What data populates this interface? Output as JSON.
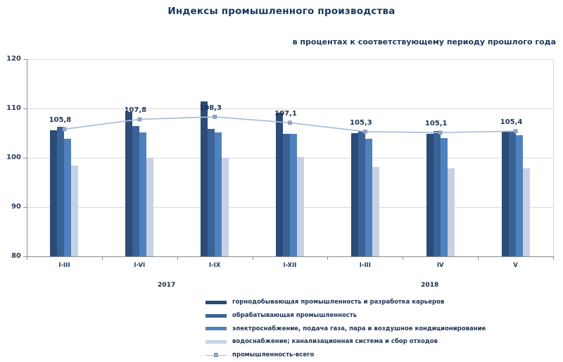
{
  "header": {
    "title": "Индексы промышленного производства",
    "subtitle": "в процентах к соответствующему периоду прошлого года"
  },
  "chart_data": {
    "type": "bar",
    "title": "Индексы промышленного производства",
    "subtitle": "в процентах к соответствующему периоду прошлого года",
    "categories": [
      "I-III",
      "I-VI",
      "I-IX",
      "I-XII",
      "I-III",
      "IV",
      "V"
    ],
    "year_groups": [
      {
        "label": "2017",
        "span": 4
      },
      {
        "label": "2018",
        "span": 3
      }
    ],
    "series": [
      {
        "name": "горнодобывающая промышленность  и разработка карьеров",
        "type": "bar",
        "color": "#2c4c77",
        "values": [
          105.6,
          109.3,
          111.4,
          109.1,
          105.0,
          104.9,
          105.3
        ]
      },
      {
        "name": "обрабатывающая промышленность",
        "type": "bar",
        "color": "#396297",
        "values": [
          106.3,
          106.4,
          105.8,
          104.9,
          105.5,
          105.4,
          105.5
        ]
      },
      {
        "name": "электроснабжение,  подача газа, пара и воздушное кондиционирование",
        "type": "bar",
        "color": "#4f81bd",
        "values": [
          103.9,
          105.2,
          105.1,
          104.8,
          103.9,
          104.0,
          104.6
        ]
      },
      {
        "name": "водоснабжение;  канализационная  система  и сбор  отходов",
        "type": "bar",
        "color": "#c7d1e6",
        "values": [
          98.4,
          100.0,
          100.0,
          100.1,
          98.1,
          97.9,
          97.9
        ]
      },
      {
        "name": "промышленность-всего",
        "type": "line",
        "color": "#a8bbd9",
        "marker_color": "#90a7c6",
        "values": [
          105.8,
          107.8,
          108.3,
          107.1,
          105.3,
          105.1,
          105.4
        ],
        "labels": [
          "105,8",
          "107,8",
          "108,3",
          "107,1",
          "105,3",
          "105,1",
          "105,4"
        ]
      }
    ],
    "ylim": [
      80,
      120
    ],
    "yticks": [
      80,
      90,
      100,
      110,
      120
    ],
    "xlabel": "",
    "ylabel": "",
    "grid": true,
    "legend_position": "bottom"
  },
  "colors": {
    "grid": "#d9d9d9",
    "axis": "#8c8c8c",
    "text": "#1c3557"
  }
}
